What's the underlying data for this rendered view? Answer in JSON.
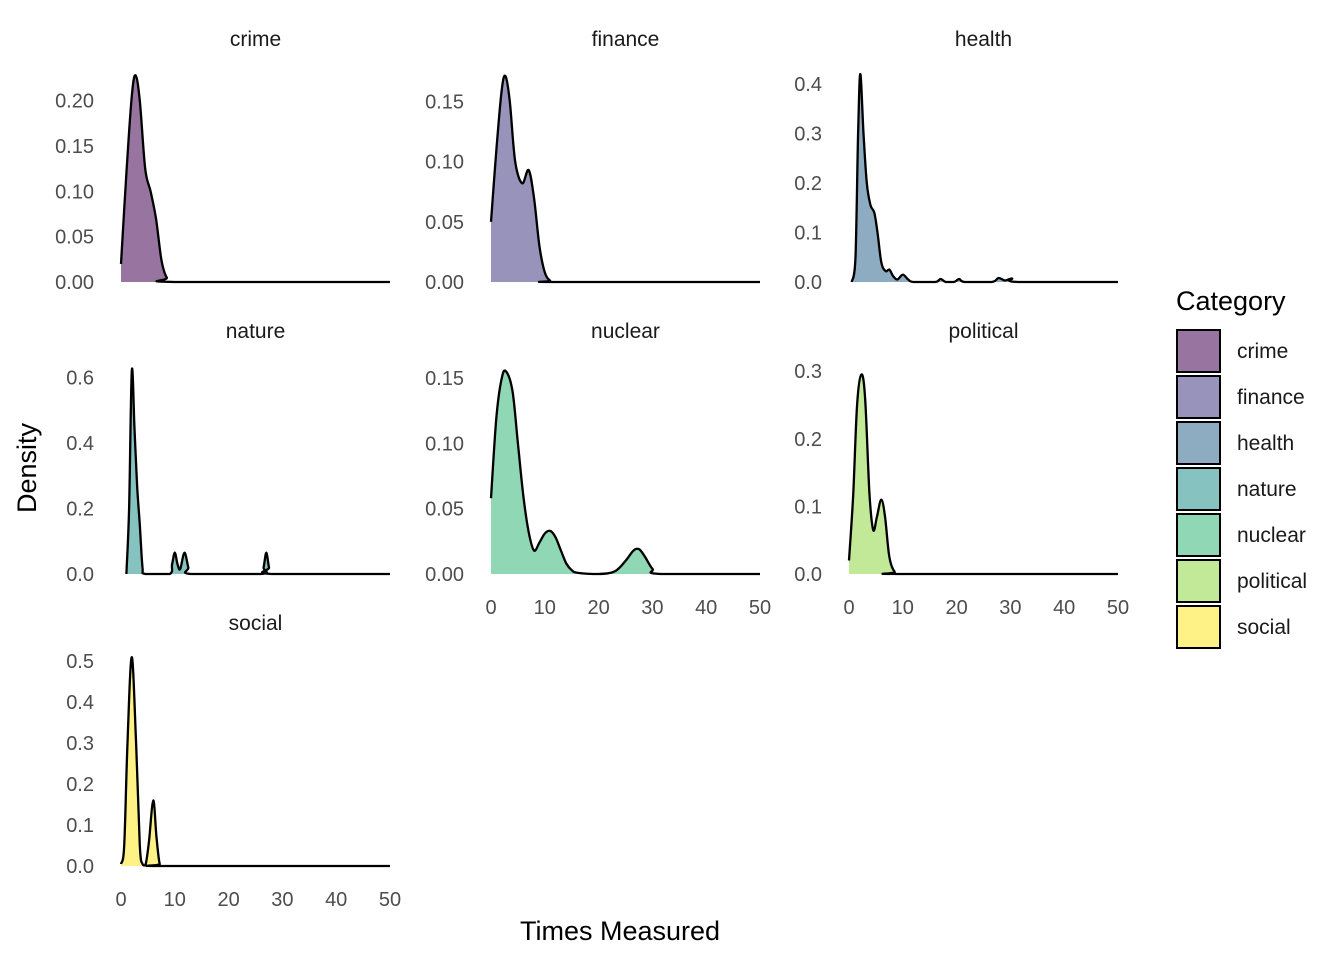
{
  "chart_data": {
    "type": "area",
    "xlabel": "Times Measured",
    "ylabel": "Density",
    "xlim": [
      0,
      50
    ],
    "x_ticks": [
      0,
      10,
      20,
      30,
      40,
      50
    ],
    "grid": false,
    "legend": {
      "title": "Category",
      "placement": "right",
      "entries": [
        {
          "label": "crime",
          "color": "#440154"
        },
        {
          "label": "finance",
          "color": "#443A83"
        },
        {
          "label": "health",
          "color": "#31688E"
        },
        {
          "label": "nature",
          "color": "#21908C"
        },
        {
          "label": "nuclear",
          "color": "#35B779"
        },
        {
          "label": "political",
          "color": "#8FD744"
        },
        {
          "label": "social",
          "color": "#FDE725"
        }
      ]
    },
    "fill_alpha": 0.55,
    "panels": [
      {
        "name": "crime",
        "color": "#440154",
        "ylim": [
          0,
          0.235
        ],
        "y_ticks": [
          "0.00",
          "0.05",
          "0.10",
          "0.15",
          "0.20"
        ],
        "x_range": [
          0,
          50
        ],
        "points": [
          [
            0,
            0.02
          ],
          [
            1,
            0.12
          ],
          [
            2,
            0.205
          ],
          [
            2.7,
            0.228
          ],
          [
            3.5,
            0.2
          ],
          [
            4.5,
            0.125
          ],
          [
            5.5,
            0.1
          ],
          [
            6.5,
            0.07
          ],
          [
            7.5,
            0.025
          ],
          [
            8.5,
            0.005
          ],
          [
            10,
            0
          ],
          [
            50,
            0
          ]
        ]
      },
      {
        "name": "finance",
        "color": "#443A83",
        "ylim": [
          0,
          0.177
        ],
        "y_ticks": [
          "0.00",
          "0.05",
          "0.10",
          "0.15"
        ],
        "x_range": [
          0,
          50
        ],
        "points": [
          [
            0,
            0.05
          ],
          [
            1,
            0.11
          ],
          [
            2,
            0.16
          ],
          [
            2.7,
            0.171
          ],
          [
            3.5,
            0.15
          ],
          [
            4.5,
            0.1
          ],
          [
            5.8,
            0.082
          ],
          [
            7,
            0.093
          ],
          [
            8,
            0.07
          ],
          [
            9,
            0.03
          ],
          [
            10,
            0.008
          ],
          [
            11,
            0.001
          ],
          [
            12,
            0
          ],
          [
            50,
            0
          ]
        ]
      },
      {
        "name": "health",
        "color": "#31688E",
        "ylim": [
          0,
          0.43
        ],
        "y_ticks": [
          "0.0",
          "0.1",
          "0.2",
          "0.3",
          "0.4"
        ],
        "x_range": [
          0.5,
          50
        ],
        "points": [
          [
            0.5,
            0.0
          ],
          [
            1.2,
            0.05
          ],
          [
            1.7,
            0.3
          ],
          [
            2.1,
            0.42
          ],
          [
            2.7,
            0.3
          ],
          [
            3.3,
            0.2
          ],
          [
            4,
            0.155
          ],
          [
            4.7,
            0.14
          ],
          [
            5.3,
            0.1
          ],
          [
            6,
            0.04
          ],
          [
            6.8,
            0.022
          ],
          [
            7.5,
            0.025
          ],
          [
            8.2,
            0.012
          ],
          [
            9,
            0.005
          ],
          [
            10,
            0.015
          ],
          [
            11,
            0.005
          ],
          [
            12,
            0
          ],
          [
            16,
            0
          ],
          [
            17,
            0.006
          ],
          [
            18,
            0
          ],
          [
            19.5,
            0
          ],
          [
            20.5,
            0.006
          ],
          [
            21.5,
            0
          ],
          [
            26.5,
            0
          ],
          [
            27.8,
            0.008
          ],
          [
            29,
            0.003
          ],
          [
            30.3,
            0.007
          ],
          [
            31.5,
            0
          ],
          [
            50,
            0
          ]
        ]
      },
      {
        "name": "nature",
        "color": "#21908C",
        "ylim": [
          0,
          0.65
        ],
        "y_ticks": [
          "0.0",
          "0.2",
          "0.4",
          "0.6"
        ],
        "x_range": [
          1,
          50
        ],
        "points": [
          [
            1,
            0.0
          ],
          [
            1.5,
            0.2
          ],
          [
            2,
            0.62
          ],
          [
            2.5,
            0.45
          ],
          [
            3,
            0.27
          ],
          [
            3.5,
            0.15
          ],
          [
            4,
            0.02
          ],
          [
            4.5,
            0
          ],
          [
            9,
            0
          ],
          [
            9.5,
            0.03
          ],
          [
            10,
            0.065
          ],
          [
            10.5,
            0.03
          ],
          [
            11,
            0.015
          ],
          [
            11.8,
            0.065
          ],
          [
            12.5,
            0.02
          ],
          [
            13,
            0
          ],
          [
            26,
            0
          ],
          [
            26.5,
            0.02
          ],
          [
            27,
            0.065
          ],
          [
            27.5,
            0.02
          ],
          [
            28,
            0
          ],
          [
            50,
            0
          ]
        ]
      },
      {
        "name": "nuclear",
        "color": "#35B779",
        "ylim": [
          0,
          0.163
        ],
        "y_ticks": [
          "0.00",
          "0.05",
          "0.10",
          "0.15"
        ],
        "x_range": [
          0,
          50
        ],
        "points": [
          [
            0,
            0.058
          ],
          [
            1,
            0.12
          ],
          [
            2,
            0.15
          ],
          [
            2.8,
            0.155
          ],
          [
            4,
            0.14
          ],
          [
            5,
            0.1
          ],
          [
            6,
            0.06
          ],
          [
            7,
            0.032
          ],
          [
            8,
            0.018
          ],
          [
            9,
            0.024
          ],
          [
            10,
            0.031
          ],
          [
            11,
            0.033
          ],
          [
            12,
            0.028
          ],
          [
            13,
            0.018
          ],
          [
            14,
            0.008
          ],
          [
            15,
            0.003
          ],
          [
            16,
            0.001
          ],
          [
            20,
            0
          ],
          [
            23,
            0.002
          ],
          [
            25,
            0.01
          ],
          [
            26.5,
            0.018
          ],
          [
            27.5,
            0.019
          ],
          [
            28.5,
            0.014
          ],
          [
            30,
            0.004
          ],
          [
            31.5,
            0
          ],
          [
            50,
            0
          ]
        ]
      },
      {
        "name": "political",
        "color": "#8FD744",
        "ylim": [
          0,
          0.315
        ],
        "y_ticks": [
          "0.0",
          "0.1",
          "0.2",
          "0.3"
        ],
        "x_range": [
          0,
          50
        ],
        "points": [
          [
            0,
            0.02
          ],
          [
            0.8,
            0.12
          ],
          [
            1.5,
            0.25
          ],
          [
            2.3,
            0.295
          ],
          [
            3,
            0.26
          ],
          [
            3.8,
            0.12
          ],
          [
            4.5,
            0.065
          ],
          [
            5.2,
            0.085
          ],
          [
            6,
            0.11
          ],
          [
            6.7,
            0.085
          ],
          [
            7.5,
            0.025
          ],
          [
            8.5,
            0.003
          ],
          [
            9.5,
            0
          ],
          [
            50,
            0
          ]
        ]
      },
      {
        "name": "social",
        "color": "#FDE725",
        "ylim": [
          0,
          0.52
        ],
        "y_ticks": [
          "0.0",
          "0.1",
          "0.2",
          "0.3",
          "0.4",
          "0.5"
        ],
        "x_range": [
          0,
          50
        ],
        "points": [
          [
            0,
            0.005
          ],
          [
            0.6,
            0.05
          ],
          [
            1.2,
            0.3
          ],
          [
            2,
            0.51
          ],
          [
            2.8,
            0.3
          ],
          [
            3.5,
            0.05
          ],
          [
            4,
            0.005
          ],
          [
            4.6,
            0.005
          ],
          [
            5.2,
            0.06
          ],
          [
            6,
            0.16
          ],
          [
            6.6,
            0.07
          ],
          [
            7.2,
            0.005
          ],
          [
            8,
            0
          ],
          [
            50,
            0
          ]
        ]
      }
    ]
  }
}
